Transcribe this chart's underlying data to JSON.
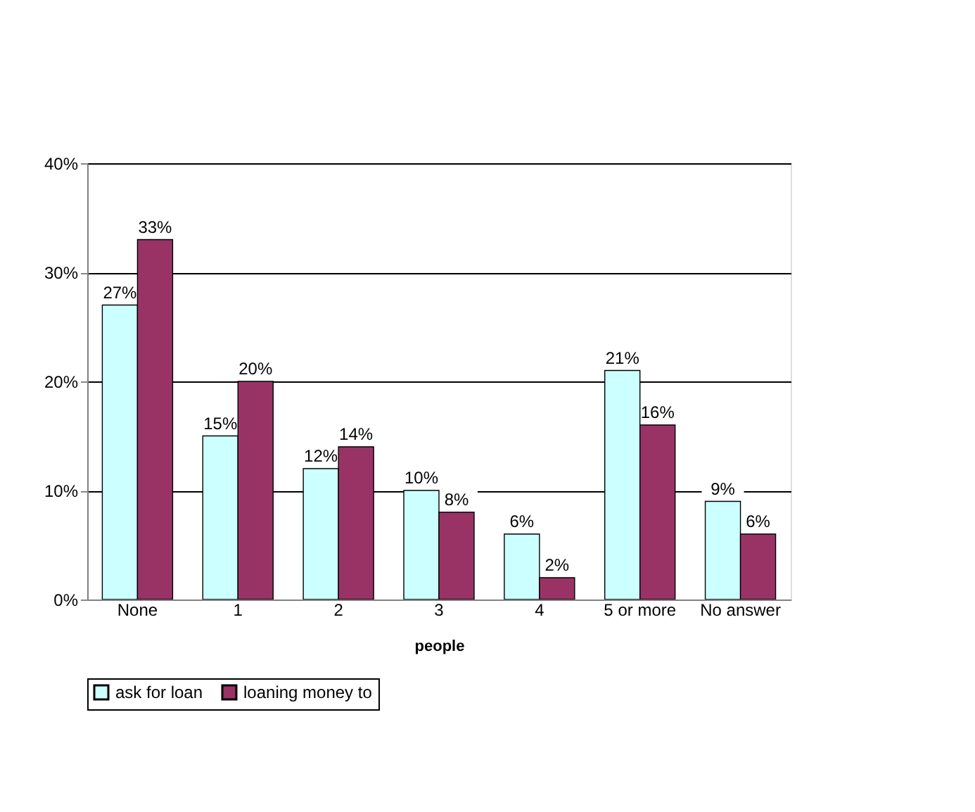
{
  "chart_data": {
    "type": "bar",
    "xlabel": "people",
    "categories": [
      "None",
      "1",
      "2",
      "3",
      "4",
      "5 or more",
      "No answer"
    ],
    "series": [
      {
        "name": "ask for loan",
        "color": "#ccffff",
        "values": [
          27,
          15,
          12,
          10,
          6,
          21,
          9
        ],
        "value_labels": [
          "27%",
          "15%",
          "12%",
          "10%",
          "6%",
          "21%",
          "9%"
        ]
      },
      {
        "name": "loaning money to",
        "color": "#993366",
        "values": [
          33,
          20,
          14,
          8,
          2,
          16,
          6
        ],
        "value_labels": [
          "33%",
          "20%",
          "14%",
          "8%",
          "2%",
          "16%",
          "6%"
        ]
      }
    ],
    "ylim": [
      0,
      40
    ],
    "yticks": [
      {
        "value": 0,
        "label": "0%"
      },
      {
        "value": 10,
        "label": "10%"
      },
      {
        "value": 20,
        "label": "20%"
      },
      {
        "value": 30,
        "label": "30%"
      },
      {
        "value": 40,
        "label": "40%"
      }
    ],
    "grid": "y",
    "legend": "bottom"
  }
}
